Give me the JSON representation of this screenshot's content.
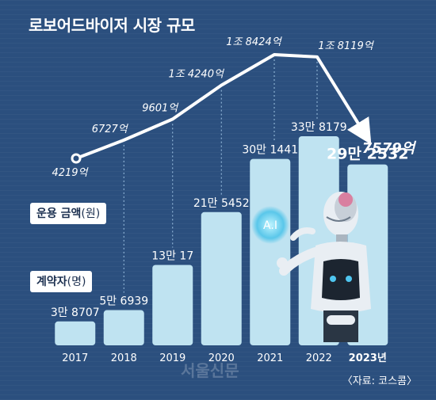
{
  "title": "로보어드바이저 시장 규모",
  "source": "〈자료: 코스콤〉",
  "watermark": "서울신문",
  "legend": {
    "line_label": "운용 금액",
    "line_unit": "(원)",
    "bar_label": "계약자",
    "bar_unit": "(명)"
  },
  "robot_badge": "A.I",
  "colors": {
    "background": "#2b4f7e",
    "bar": "#bfe3f1",
    "line": "#ffffff"
  },
  "chart_data": {
    "type": "bar",
    "categories": [
      "2017",
      "2018",
      "2019",
      "2020",
      "2021",
      "2022",
      "2023년"
    ],
    "highlight_index": 6,
    "series": [
      {
        "name": "계약자",
        "type": "bar",
        "values": [
          38707,
          56939,
          130017,
          215452,
          301441,
          338179,
          292532
        ],
        "labels": [
          "3만 8707",
          "5만 6939",
          "13만 17",
          "21만 5452",
          "30만 1441",
          "33만 8179",
          "29만 2532"
        ]
      },
      {
        "name": "운용 금액",
        "type": "line",
        "values": [
          4219,
          6727,
          9601,
          14240,
          18424,
          18119,
          7579
        ],
        "labels": [
          "4219억",
          "6727억",
          "9601억",
          "1조 4240억",
          "1조 8424억",
          "1조 8119억",
          "7579억"
        ]
      }
    ]
  }
}
